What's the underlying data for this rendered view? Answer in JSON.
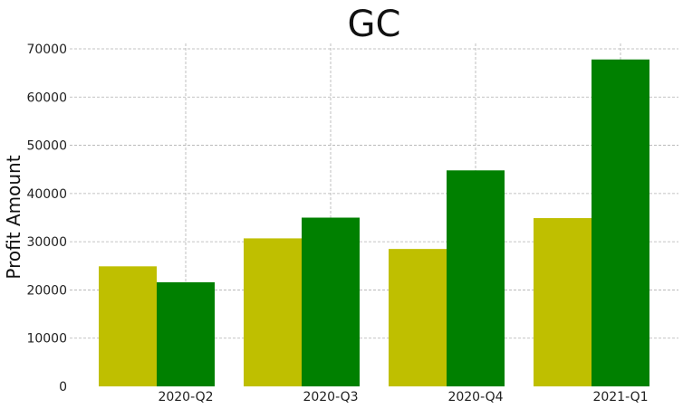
{
  "chart_data": {
    "type": "bar",
    "title": "GC",
    "xlabel": "",
    "ylabel": "Profit Amount",
    "categories": [
      "2020-Q2",
      "2020-Q3",
      "2020-Q4",
      "2021-Q1"
    ],
    "series": [
      {
        "values": [
          24900,
          30700,
          28500,
          34900
        ],
        "color": "#bfbf00"
      },
      {
        "values": [
          21600,
          35000,
          44800,
          67800
        ],
        "color": "#008000"
      }
    ],
    "ylim": [
      0,
      70000
    ],
    "yticks": [
      "0",
      "10000",
      "20000",
      "30000",
      "40000",
      "50000",
      "60000",
      "70000"
    ],
    "grid": true,
    "legend": "none"
  }
}
